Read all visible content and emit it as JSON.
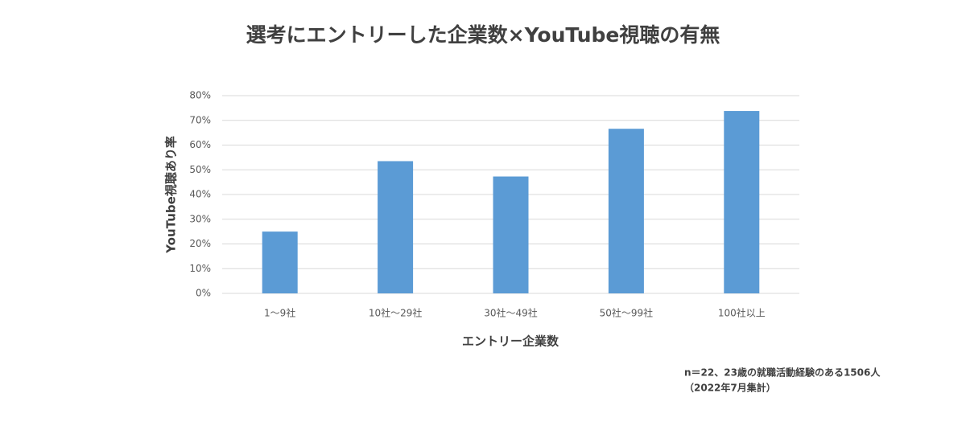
{
  "chart_data": {
    "type": "bar",
    "title": "選考にエントリーした企業数×YouTube視聴の有無",
    "x_label": "エントリー企業数",
    "y_label": "YouTube視聴あり率",
    "note": [
      "n＝22、23歳の就職活動経験のある1506人",
      "（2022年7月集計）"
    ],
    "categories": [
      "1〜9社",
      "10社〜29社",
      "30社〜49社",
      "50社〜99社",
      "100社以上"
    ],
    "values": [
      25,
      53.5,
      47.3,
      66.6,
      73.8
    ],
    "color": "#5b9bd5",
    "ylim": [
      0,
      80
    ],
    "yticks": [
      {
        "value": 0,
        "label": "0%"
      },
      {
        "value": 10,
        "label": "10%"
      },
      {
        "value": 20,
        "label": "20%"
      },
      {
        "value": 30,
        "label": "30%"
      },
      {
        "value": 40,
        "label": "40%"
      },
      {
        "value": 50,
        "label": "50%"
      },
      {
        "value": 60,
        "label": "60%"
      },
      {
        "value": 70,
        "label": "70%"
      },
      {
        "value": 80,
        "label": "80%"
      }
    ],
    "grid": true
  }
}
